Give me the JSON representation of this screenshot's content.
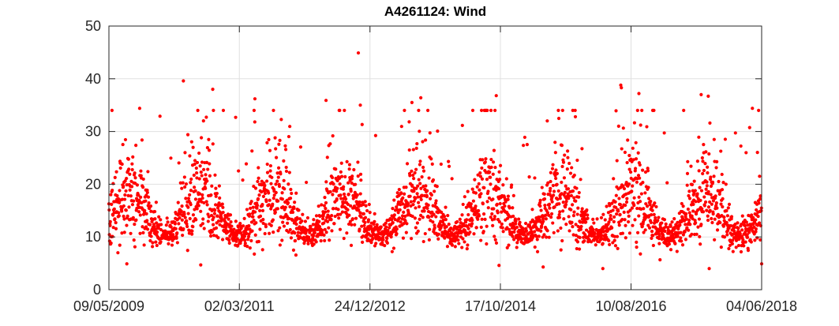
{
  "chart_data": {
    "type": "scatter",
    "title": "A4261124: Wind",
    "xlabel": "",
    "ylabel": "",
    "x_axis": {
      "type": "date",
      "range": [
        "2009-05-09",
        "2018-06-04"
      ],
      "tick_labels": [
        "09/05/2009",
        "02/03/2011",
        "24/12/2012",
        "17/10/2014",
        "10/08/2016",
        "04/06/2018"
      ]
    },
    "y_axis": {
      "range": [
        0,
        50
      ],
      "tick_labels": [
        "0",
        "10",
        "20",
        "30",
        "40",
        "50"
      ]
    },
    "grid": true,
    "marker_color": "#ff0000",
    "notable_points": [
      {
        "x": "2009-07-15",
        "y": 23.8
      },
      {
        "x": "2009-10-12",
        "y": 34.4
      },
      {
        "x": "2010-05-22",
        "y": 39.6
      },
      {
        "x": "2010-10-18",
        "y": 38.0
      },
      {
        "x": "2011-05-20",
        "y": 36.2
      },
      {
        "x": "2012-05-15",
        "y": 35.9
      },
      {
        "x": "2012-10-26",
        "y": 44.9
      },
      {
        "x": "2012-11-05",
        "y": 35.0
      },
      {
        "x": "2013-07-25",
        "y": 35.5
      },
      {
        "x": "2013-09-08",
        "y": 36.4
      },
      {
        "x": "2014-09-26",
        "y": 36.8
      },
      {
        "x": "2016-06-19",
        "y": 38.8
      },
      {
        "x": "2016-06-22",
        "y": 38.3
      },
      {
        "x": "2016-09-19",
        "y": 37.2
      },
      {
        "x": "2017-08-01",
        "y": 37.0
      },
      {
        "x": "2017-09-06",
        "y": 36.7
      },
      {
        "x": "2018-04-18",
        "y": 34.4
      },
      {
        "x": "2009-08-08",
        "y": 4.9
      },
      {
        "x": "2010-08-18",
        "y": 4.7
      },
      {
        "x": "2014-10-10",
        "y": 4.6
      },
      {
        "x": "2015-05-22",
        "y": 4.3
      },
      {
        "x": "2016-03-20",
        "y": 4.0
      },
      {
        "x": "2018-06-04",
        "y": 4.9
      }
    ],
    "series": [
      {
        "seasonal_mean": {
          "base": 13.5,
          "amplitude": 3.5,
          "peak_day_of_year": 232
        },
        "spread": {
          "min": 4,
          "max": 45
        },
        "observation_interval_days": 1.2
      }
    ]
  }
}
